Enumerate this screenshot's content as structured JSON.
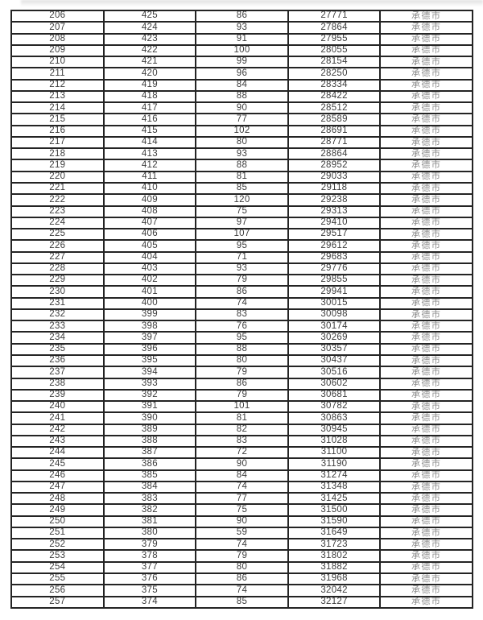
{
  "table": {
    "column_names": [
      "rank-cell",
      "score-cell",
      "count-cell",
      "cumulative-cell",
      "city-cell"
    ],
    "city_name": "承德市",
    "rows": [
      [
        "206",
        "425",
        "86",
        "27771",
        "承德市"
      ],
      [
        "207",
        "424",
        "93",
        "27864",
        "承德市"
      ],
      [
        "208",
        "423",
        "91",
        "27955",
        "承德市"
      ],
      [
        "209",
        "422",
        "100",
        "28055",
        "承德市"
      ],
      [
        "210",
        "421",
        "99",
        "28154",
        "承德市"
      ],
      [
        "211",
        "420",
        "96",
        "28250",
        "承德市"
      ],
      [
        "212",
        "419",
        "84",
        "28334",
        "承德市"
      ],
      [
        "213",
        "418",
        "88",
        "28422",
        "承德市"
      ],
      [
        "214",
        "417",
        "90",
        "28512",
        "承德市"
      ],
      [
        "215",
        "416",
        "77",
        "28589",
        "承德市"
      ],
      [
        "216",
        "415",
        "102",
        "28691",
        "承德市"
      ],
      [
        "217",
        "414",
        "80",
        "28771",
        "承德市"
      ],
      [
        "218",
        "413",
        "93",
        "28864",
        "承德市"
      ],
      [
        "219",
        "412",
        "88",
        "28952",
        "承德市"
      ],
      [
        "220",
        "411",
        "81",
        "29033",
        "承德市"
      ],
      [
        "221",
        "410",
        "85",
        "29118",
        "承德市"
      ],
      [
        "222",
        "409",
        "120",
        "29238",
        "承德市"
      ],
      [
        "223",
        "408",
        "75",
        "29313",
        "承德市"
      ],
      [
        "224",
        "407",
        "97",
        "29410",
        "承德市"
      ],
      [
        "225",
        "406",
        "107",
        "29517",
        "承德市"
      ],
      [
        "226",
        "405",
        "95",
        "29612",
        "承德市"
      ],
      [
        "227",
        "404",
        "71",
        "29683",
        "承德市"
      ],
      [
        "228",
        "403",
        "93",
        "29776",
        "承德市"
      ],
      [
        "229",
        "402",
        "79",
        "29855",
        "承德市"
      ],
      [
        "230",
        "401",
        "86",
        "29941",
        "承德市"
      ],
      [
        "231",
        "400",
        "74",
        "30015",
        "承德市"
      ],
      [
        "232",
        "399",
        "83",
        "30098",
        "承德市"
      ],
      [
        "233",
        "398",
        "76",
        "30174",
        "承德市"
      ],
      [
        "234",
        "397",
        "95",
        "30269",
        "承德市"
      ],
      [
        "235",
        "396",
        "88",
        "30357",
        "承德市"
      ],
      [
        "236",
        "395",
        "80",
        "30437",
        "承德市"
      ],
      [
        "237",
        "394",
        "79",
        "30516",
        "承德市"
      ],
      [
        "238",
        "393",
        "86",
        "30602",
        "承德市"
      ],
      [
        "239",
        "392",
        "79",
        "30681",
        "承德市"
      ],
      [
        "240",
        "391",
        "101",
        "30782",
        "承德市"
      ],
      [
        "241",
        "390",
        "81",
        "30863",
        "承德市"
      ],
      [
        "242",
        "389",
        "82",
        "30945",
        "承德市"
      ],
      [
        "243",
        "388",
        "83",
        "31028",
        "承德市"
      ],
      [
        "244",
        "387",
        "72",
        "31100",
        "承德市"
      ],
      [
        "245",
        "386",
        "90",
        "31190",
        "承德市"
      ],
      [
        "246",
        "385",
        "84",
        "31274",
        "承德市"
      ],
      [
        "247",
        "384",
        "74",
        "31348",
        "承德市"
      ],
      [
        "248",
        "383",
        "77",
        "31425",
        "承德市"
      ],
      [
        "249",
        "382",
        "75",
        "31500",
        "承德市"
      ],
      [
        "250",
        "381",
        "90",
        "31590",
        "承德市"
      ],
      [
        "251",
        "380",
        "59",
        "31649",
        "承德市"
      ],
      [
        "252",
        "379",
        "74",
        "31723",
        "承德市"
      ],
      [
        "253",
        "378",
        "79",
        "31802",
        "承德市"
      ],
      [
        "254",
        "377",
        "80",
        "31882",
        "承德市"
      ],
      [
        "255",
        "376",
        "86",
        "31968",
        "承德市"
      ],
      [
        "256",
        "375",
        "74",
        "32042",
        "承德市"
      ],
      [
        "257",
        "374",
        "85",
        "32127",
        "承德市"
      ]
    ]
  }
}
